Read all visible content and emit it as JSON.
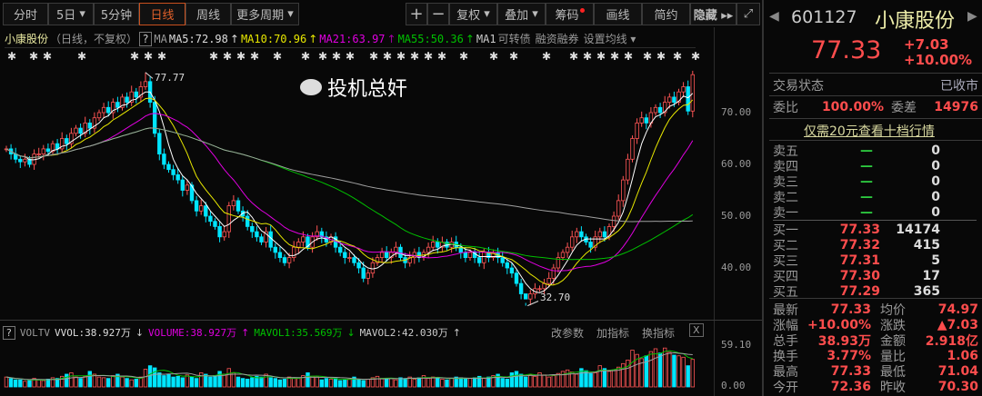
{
  "toolbar": {
    "tabs": [
      "分时",
      "5日",
      "5分钟",
      "日线",
      "周线",
      "更多周期"
    ],
    "active": "日线",
    "zoom_in": "+",
    "zoom_out": "−",
    "fuquan": "复权",
    "overlay": "叠加",
    "chips": "筹码",
    "draw": "画线",
    "simple": "简约",
    "hide": "隐藏 ▸▸",
    "fullscreen": "⤢"
  },
  "legend": {
    "name": "小康股份",
    "mode": "（日线，不复权）",
    "help": "?",
    "ma": "MA",
    "ma5": "MA5:72.98",
    "ma10": "MA10:70.96",
    "ma21": "MA21:63.97",
    "ma55": "MA55:50.36",
    "ma1": "MA1",
    "convertible": "可转债",
    "margin": "融资融券",
    "set_ma": "设置均线 ▾",
    "arrow": "↑"
  },
  "info_marker_glyph": "✱",
  "chart_data": {
    "type": "candlestick",
    "y_ticks": [
      "70.00",
      "60.00",
      "50.00",
      "40.00"
    ],
    "high_label": "77.77",
    "low_label": "32.70",
    "colors": {
      "up": "#ff5555",
      "down": "#00e5ff",
      "ma5": "#ffffff",
      "ma10": "#e8e800",
      "ma21": "#e000e0",
      "ma55": "#00c000",
      "ma_long": "#a0a0a0"
    },
    "closes": [
      63,
      62,
      61,
      60.5,
      61,
      60,
      62,
      62,
      63,
      62.5,
      64,
      63,
      65,
      64,
      66,
      67,
      66,
      68,
      67,
      69,
      70,
      71,
      70,
      72,
      71,
      73,
      72,
      74,
      73,
      75,
      76,
      72,
      66,
      62,
      60,
      59,
      58,
      57,
      55,
      56,
      53,
      51,
      52,
      50,
      49,
      48,
      46,
      47,
      52,
      53,
      51,
      50,
      48,
      47,
      46,
      45,
      47,
      44,
      43,
      42,
      41,
      42,
      44,
      45,
      46,
      44,
      46,
      47,
      46,
      45,
      46,
      44,
      43,
      42,
      42,
      41,
      40,
      38,
      39,
      41,
      42,
      43,
      42,
      43,
      44,
      42,
      41,
      42,
      43,
      42,
      43,
      44,
      45,
      44,
      45,
      44,
      45,
      44,
      43,
      42,
      43,
      42,
      41,
      43,
      42,
      43,
      42,
      41,
      40,
      39,
      37,
      35,
      34,
      35,
      36,
      36,
      37,
      38,
      40,
      42,
      43,
      44,
      46,
      47,
      46,
      45,
      44,
      46,
      47,
      46,
      48,
      50,
      53,
      57,
      61,
      65,
      68,
      69,
      68,
      70,
      71,
      70,
      72,
      73,
      72,
      74,
      75,
      70.3,
      77.33
    ],
    "volumes": [
      14,
      12,
      10,
      10,
      8,
      9,
      12,
      10,
      9,
      11,
      13,
      12,
      15,
      18,
      20,
      14,
      12,
      15,
      22,
      18,
      14,
      13,
      12,
      16,
      18,
      14,
      12,
      10,
      11,
      14,
      25,
      30,
      27,
      20,
      16,
      18,
      14,
      15,
      13,
      17,
      14,
      12,
      20,
      18,
      14,
      16,
      22,
      18,
      26,
      20,
      14,
      12,
      11,
      13,
      15,
      14,
      18,
      13,
      12,
      10,
      11,
      14,
      13,
      12,
      16,
      20,
      15,
      14,
      10,
      12,
      11,
      12,
      9,
      10,
      11,
      14,
      10,
      9,
      11,
      13,
      15,
      12,
      11,
      12,
      10,
      13,
      12,
      14,
      11,
      13,
      16,
      12,
      14,
      13,
      11,
      10,
      12,
      14,
      13,
      11,
      12,
      13,
      15,
      12,
      14,
      16,
      18,
      12,
      11,
      20,
      22,
      18,
      14,
      17,
      15,
      20,
      17,
      14,
      16,
      19,
      22,
      24,
      21,
      18,
      26,
      23,
      19,
      20,
      30,
      26,
      22,
      24,
      28,
      33,
      38,
      52,
      46,
      40,
      44,
      50,
      54,
      48,
      55,
      49,
      45,
      44,
      42,
      30,
      38.93
    ],
    "vol_ticks": [
      "59.10",
      "0.00"
    ]
  },
  "volume_panel": {
    "help": "?",
    "name": "VOLTV",
    "vvol": "VVOL:38.927万",
    "volume": "VOLUME:38.927万",
    "mavol1": "MAVOL1:35.569万",
    "mavol2": "MAVOL2:42.030万",
    "down": "↓",
    "up": "↑",
    "edit": "改参数",
    "add": "加指标",
    "switch": "换指标",
    "close": "X"
  },
  "quote": {
    "code": "601127",
    "name": "小康股份",
    "price": "77.33",
    "change": "+7.03",
    "pct": "+10.00%",
    "status_label": "交易状态",
    "status": "已收市",
    "wb_label": "委比",
    "wb": "100.00%",
    "wc_label": "委差",
    "wc": "14976",
    "promo": "仅需20元查看十档行情",
    "asks": [
      {
        "label": "卖五",
        "price": "—",
        "vol": "0"
      },
      {
        "label": "卖四",
        "price": "—",
        "vol": "0"
      },
      {
        "label": "卖三",
        "price": "—",
        "vol": "0"
      },
      {
        "label": "卖二",
        "price": "—",
        "vol": "0"
      },
      {
        "label": "卖一",
        "price": "—",
        "vol": "0"
      }
    ],
    "bids": [
      {
        "label": "买一",
        "price": "77.33",
        "vol": "14174"
      },
      {
        "label": "买二",
        "price": "77.32",
        "vol": "415"
      },
      {
        "label": "买三",
        "price": "77.31",
        "vol": "5"
      },
      {
        "label": "买四",
        "price": "77.30",
        "vol": "17"
      },
      {
        "label": "买五",
        "price": "77.29",
        "vol": "365"
      }
    ],
    "stats": [
      [
        "最新",
        "77.33",
        "均价",
        "74.97"
      ],
      [
        "涨幅",
        "+10.00%",
        "涨跌",
        "▲7.03"
      ],
      [
        "总手",
        "38.93万",
        "金额",
        "2.918亿"
      ],
      [
        "换手",
        "3.77%",
        "量比",
        "1.06"
      ],
      [
        "最高",
        "77.33",
        "最低",
        "71.04"
      ],
      [
        "今开",
        "72.36",
        "昨收",
        "70.30"
      ]
    ]
  },
  "watermark": "投机总奸"
}
